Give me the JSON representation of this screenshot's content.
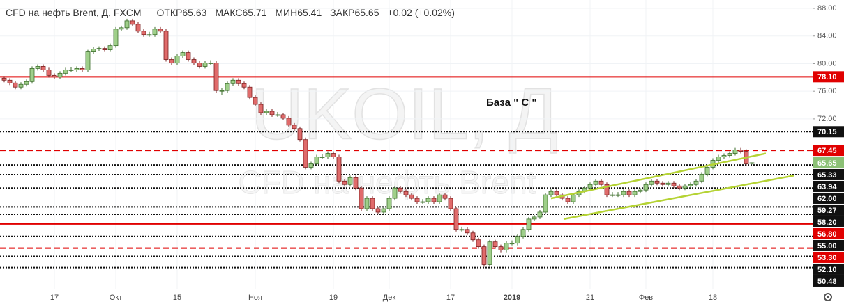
{
  "chart_data": {
    "type": "candlestick",
    "header": {
      "symbol": "CFD на нефть Brent, Д, FXCM",
      "open_label": "ОТКР",
      "high_label": "МАКС",
      "low_label": "МИН",
      "close_label": "ЗАКР",
      "change": "+0.02 (+0.02%)"
    },
    "watermark": [
      "UKOIL, Д",
      "CFD на нефть Brent"
    ],
    "annotation": "База \" С \"",
    "xlim": [
      -0.75,
      144.875
    ],
    "ylim": [
      47.42,
      89.21
    ],
    "xticks": [
      {
        "value": 9,
        "label": "17"
      },
      {
        "value": 20,
        "label": "Окт"
      },
      {
        "value": 31,
        "label": "15"
      },
      {
        "value": 45,
        "label": "Ноя"
      },
      {
        "value": 59,
        "label": "19"
      },
      {
        "value": 69,
        "label": "Дек"
      },
      {
        "value": 80,
        "label": "17"
      },
      {
        "value": 91,
        "label": "2019"
      },
      {
        "value": 105,
        "label": "21"
      },
      {
        "value": 115,
        "label": "Фев"
      },
      {
        "value": 127,
        "label": "18"
      }
    ],
    "yticks": [
      {
        "value": 88,
        "label": "88.00"
      },
      {
        "value": 84,
        "label": "84.00"
      },
      {
        "value": 80,
        "label": "80.00"
      },
      {
        "value": 76,
        "label": "76.00"
      },
      {
        "value": 72,
        "label": "72.00"
      }
    ],
    "grid": true,
    "up_color": "#9fcf8a",
    "down_color": "#e06b6b",
    "last_price_color": "#8cc176",
    "candles": [
      [
        77.9,
        78.2,
        77.3,
        77.6
      ],
      [
        77.6,
        77.9,
        76.9,
        77.2
      ],
      [
        77.2,
        77.5,
        76.3,
        76.6
      ],
      [
        76.6,
        77.3,
        76.3,
        77.0
      ],
      [
        77.0,
        77.7,
        76.7,
        77.4
      ],
      [
        77.4,
        79.6,
        77.1,
        79.3
      ],
      [
        79.3,
        79.9,
        79.0,
        79.6
      ],
      [
        79.6,
        79.9,
        78.8,
        79.1
      ],
      [
        79.1,
        79.4,
        78.0,
        78.3
      ],
      [
        78.3,
        78.6,
        77.8,
        78.1
      ],
      [
        78.1,
        78.9,
        77.8,
        78.6
      ],
      [
        78.6,
        79.4,
        78.3,
        79.1
      ],
      [
        79.1,
        79.5,
        78.8,
        79.1
      ],
      [
        79.1,
        79.6,
        78.8,
        79.3
      ],
      [
        79.3,
        79.6,
        78.8,
        79.1
      ],
      [
        79.1,
        82.0,
        78.8,
        81.7
      ],
      [
        81.7,
        82.4,
        81.4,
        82.1
      ],
      [
        82.1,
        82.5,
        81.8,
        82.2
      ],
      [
        82.2,
        82.5,
        81.7,
        82.0
      ],
      [
        82.0,
        82.9,
        81.7,
        82.6
      ],
      [
        82.6,
        85.3,
        82.3,
        85.0
      ],
      [
        85.0,
        85.5,
        84.7,
        85.2
      ],
      [
        85.2,
        86.5,
        84.9,
        86.2
      ],
      [
        86.2,
        86.5,
        85.4,
        85.7
      ],
      [
        85.7,
        86.0,
        84.4,
        84.7
      ],
      [
        84.7,
        85.0,
        83.9,
        84.2
      ],
      [
        84.2,
        84.6,
        83.9,
        84.2
      ],
      [
        84.2,
        85.3,
        83.9,
        85.0
      ],
      [
        85.0,
        85.3,
        84.4,
        84.7
      ],
      [
        84.7,
        85.0,
        80.3,
        80.6
      ],
      [
        80.6,
        80.9,
        79.8,
        80.1
      ],
      [
        80.1,
        81.4,
        79.8,
        81.1
      ],
      [
        81.1,
        81.9,
        80.8,
        81.6
      ],
      [
        81.6,
        81.9,
        80.3,
        80.6
      ],
      [
        80.6,
        80.9,
        79.8,
        80.1
      ],
      [
        80.1,
        80.4,
        79.3,
        79.6
      ],
      [
        79.6,
        80.4,
        79.3,
        80.1
      ],
      [
        80.1,
        80.5,
        79.8,
        80.1
      ],
      [
        80.1,
        80.4,
        75.8,
        76.1
      ],
      [
        76.1,
        76.5,
        75.5,
        76.1
      ],
      [
        76.1,
        77.4,
        75.8,
        77.1
      ],
      [
        77.1,
        77.9,
        76.8,
        77.6
      ],
      [
        77.6,
        77.9,
        76.8,
        77.1
      ],
      [
        77.1,
        77.4,
        76.3,
        76.6
      ],
      [
        76.6,
        76.9,
        74.8,
        75.1
      ],
      [
        75.1,
        75.4,
        73.8,
        74.1
      ],
      [
        74.1,
        74.4,
        72.6,
        72.9
      ],
      [
        72.9,
        73.4,
        72.6,
        73.1
      ],
      [
        73.1,
        73.4,
        72.3,
        72.6
      ],
      [
        72.6,
        73.0,
        72.3,
        72.6
      ],
      [
        72.6,
        72.9,
        71.8,
        72.1
      ],
      [
        72.1,
        72.4,
        70.8,
        71.1
      ],
      [
        71.1,
        71.4,
        70.3,
        70.6
      ],
      [
        70.6,
        70.9,
        68.7,
        69.0
      ],
      [
        69.0,
        69.3,
        64.7,
        65.0
      ],
      [
        65.0,
        65.8,
        64.7,
        65.5
      ],
      [
        65.5,
        66.8,
        65.2,
        66.5
      ],
      [
        66.5,
        66.9,
        66.2,
        66.5
      ],
      [
        66.5,
        67.3,
        66.2,
        67.0
      ],
      [
        67.0,
        67.3,
        66.2,
        66.5
      ],
      [
        66.5,
        66.8,
        62.7,
        63.0
      ],
      [
        63.0,
        63.3,
        62.2,
        62.5
      ],
      [
        62.5,
        63.8,
        62.2,
        63.5
      ],
      [
        63.5,
        63.8,
        61.7,
        62.0
      ],
      [
        62.0,
        62.3,
        58.7,
        59.0
      ],
      [
        59.0,
        60.8,
        58.7,
        60.5
      ],
      [
        60.5,
        60.8,
        58.7,
        59.0
      ],
      [
        59.0,
        59.3,
        58.2,
        58.5
      ],
      [
        58.5,
        59.3,
        58.2,
        59.0
      ],
      [
        59.0,
        60.8,
        58.7,
        60.5
      ],
      [
        60.5,
        62.3,
        60.2,
        62.0
      ],
      [
        62.0,
        62.3,
        61.2,
        61.5
      ],
      [
        61.5,
        61.8,
        60.7,
        61.0
      ],
      [
        61.0,
        61.3,
        60.2,
        60.5
      ],
      [
        60.5,
        60.8,
        59.7,
        60.0
      ],
      [
        60.0,
        60.4,
        59.7,
        60.0
      ],
      [
        60.0,
        60.8,
        59.7,
        60.5
      ],
      [
        60.5,
        60.8,
        59.7,
        60.0
      ],
      [
        60.0,
        61.3,
        59.7,
        61.0
      ],
      [
        61.0,
        61.3,
        60.2,
        60.5
      ],
      [
        60.5,
        60.8,
        58.7,
        59.0
      ],
      [
        59.0,
        59.3,
        55.7,
        56.0
      ],
      [
        56.0,
        56.4,
        55.7,
        56.0
      ],
      [
        56.0,
        56.3,
        55.2,
        55.5
      ],
      [
        55.5,
        55.8,
        54.2,
        54.5
      ],
      [
        54.5,
        54.8,
        53.2,
        53.5
      ],
      [
        53.5,
        53.8,
        50.6,
        50.9
      ],
      [
        50.9,
        54.5,
        50.6,
        54.2
      ],
      [
        54.2,
        54.5,
        53.2,
        53.5
      ],
      [
        53.5,
        53.8,
        52.7,
        53.0
      ],
      [
        53.0,
        54.3,
        52.7,
        54.0
      ],
      [
        54.0,
        54.4,
        53.7,
        54.0
      ],
      [
        54.0,
        55.3,
        53.7,
        55.0
      ],
      [
        55.0,
        56.3,
        54.7,
        56.0
      ],
      [
        56.0,
        57.8,
        55.7,
        57.5
      ],
      [
        57.5,
        58.1,
        57.2,
        57.8
      ],
      [
        57.8,
        58.8,
        57.5,
        58.5
      ],
      [
        58.5,
        61.3,
        58.2,
        61.0
      ],
      [
        61.0,
        61.8,
        60.7,
        61.5
      ],
      [
        61.5,
        61.8,
        60.7,
        61.0
      ],
      [
        61.0,
        61.3,
        60.2,
        60.5
      ],
      [
        60.5,
        60.8,
        59.7,
        60.0
      ],
      [
        60.0,
        61.3,
        59.7,
        61.0
      ],
      [
        61.0,
        61.8,
        60.7,
        61.5
      ],
      [
        61.5,
        62.3,
        61.2,
        62.0
      ],
      [
        62.0,
        62.8,
        61.7,
        62.5
      ],
      [
        62.5,
        63.3,
        62.2,
        63.0
      ],
      [
        63.0,
        63.3,
        62.2,
        62.5
      ],
      [
        62.5,
        62.8,
        60.7,
        61.0
      ],
      [
        61.0,
        61.4,
        60.7,
        61.0
      ],
      [
        61.0,
        61.4,
        60.7,
        61.0
      ],
      [
        61.0,
        61.8,
        60.7,
        61.5
      ],
      [
        61.5,
        61.8,
        60.7,
        61.0
      ],
      [
        61.0,
        61.8,
        60.7,
        61.5
      ],
      [
        61.5,
        62.0,
        61.2,
        61.7
      ],
      [
        61.7,
        62.8,
        61.4,
        62.5
      ],
      [
        62.5,
        63.3,
        62.2,
        63.0
      ],
      [
        63.0,
        63.3,
        62.4,
        62.7
      ],
      [
        62.7,
        63.0,
        62.2,
        62.5
      ],
      [
        62.5,
        63.0,
        62.2,
        62.7
      ],
      [
        62.7,
        63.0,
        62.0,
        62.3
      ],
      [
        62.3,
        62.6,
        61.7,
        62.0
      ],
      [
        62.0,
        62.6,
        61.7,
        62.3
      ],
      [
        62.3,
        62.8,
        62.0,
        62.5
      ],
      [
        62.5,
        63.3,
        62.2,
        63.0
      ],
      [
        63.0,
        64.3,
        62.7,
        64.0
      ],
      [
        64.0,
        65.3,
        63.7,
        65.0
      ],
      [
        65.0,
        66.3,
        64.7,
        66.0
      ],
      [
        66.0,
        66.8,
        65.7,
        66.5
      ],
      [
        66.5,
        67.0,
        66.2,
        66.7
      ],
      [
        66.7,
        67.3,
        66.4,
        67.0
      ],
      [
        67.0,
        67.8,
        66.7,
        67.5
      ],
      [
        67.5,
        67.8,
        67.0,
        67.3
      ],
      [
        67.3,
        67.6,
        65.2,
        65.5
      ],
      [
        65.63,
        65.71,
        65.41,
        65.65
      ]
    ],
    "levels": [
      {
        "value": 78.1,
        "label": "78.10",
        "color": "#e00000",
        "style": "solid"
      },
      {
        "value": 70.15,
        "label": "70.15",
        "color": "#111111",
        "style": "dotted"
      },
      {
        "value": 67.45,
        "label": "67.45",
        "color": "#e00000",
        "style": "dashed"
      },
      {
        "value": 65.33,
        "label": "65.33",
        "color": "#111111",
        "style": "dotted"
      },
      {
        "value": 63.94,
        "label": "63.94",
        "color": "#111111",
        "style": "dotted"
      },
      {
        "value": 62,
        "label": "62.00",
        "color": "#111111",
        "style": "dotted"
      },
      {
        "value": 59.27,
        "label": "59.27",
        "color": "#111111",
        "style": "dotted"
      },
      {
        "value": 58.2,
        "label": "58.20",
        "color": "#111111",
        "style": "dotted"
      },
      {
        "value": 56.8,
        "label": "56.80",
        "color": "#e00000",
        "style": "solid"
      },
      {
        "value": 55,
        "label": "55.00",
        "color": "#111111",
        "style": "dotted"
      },
      {
        "value": 53.3,
        "label": "53.30",
        "color": "#e00000",
        "style": "dashed"
      },
      {
        "value": 52.1,
        "label": "52.10",
        "color": "#111111",
        "style": "dotted"
      },
      {
        "value": 50.48,
        "label": "50.48",
        "color": "#111111",
        "style": "dotted"
      }
    ],
    "trendlines": {
      "color": "#b5d334",
      "lines": [
        {
          "x": [
            98,
            136.5
          ],
          "y": [
            60.5,
            67.0
          ]
        },
        {
          "x": [
            100.25,
            141.5
          ],
          "y": [
            57.5,
            63.8
          ]
        }
      ]
    }
  }
}
